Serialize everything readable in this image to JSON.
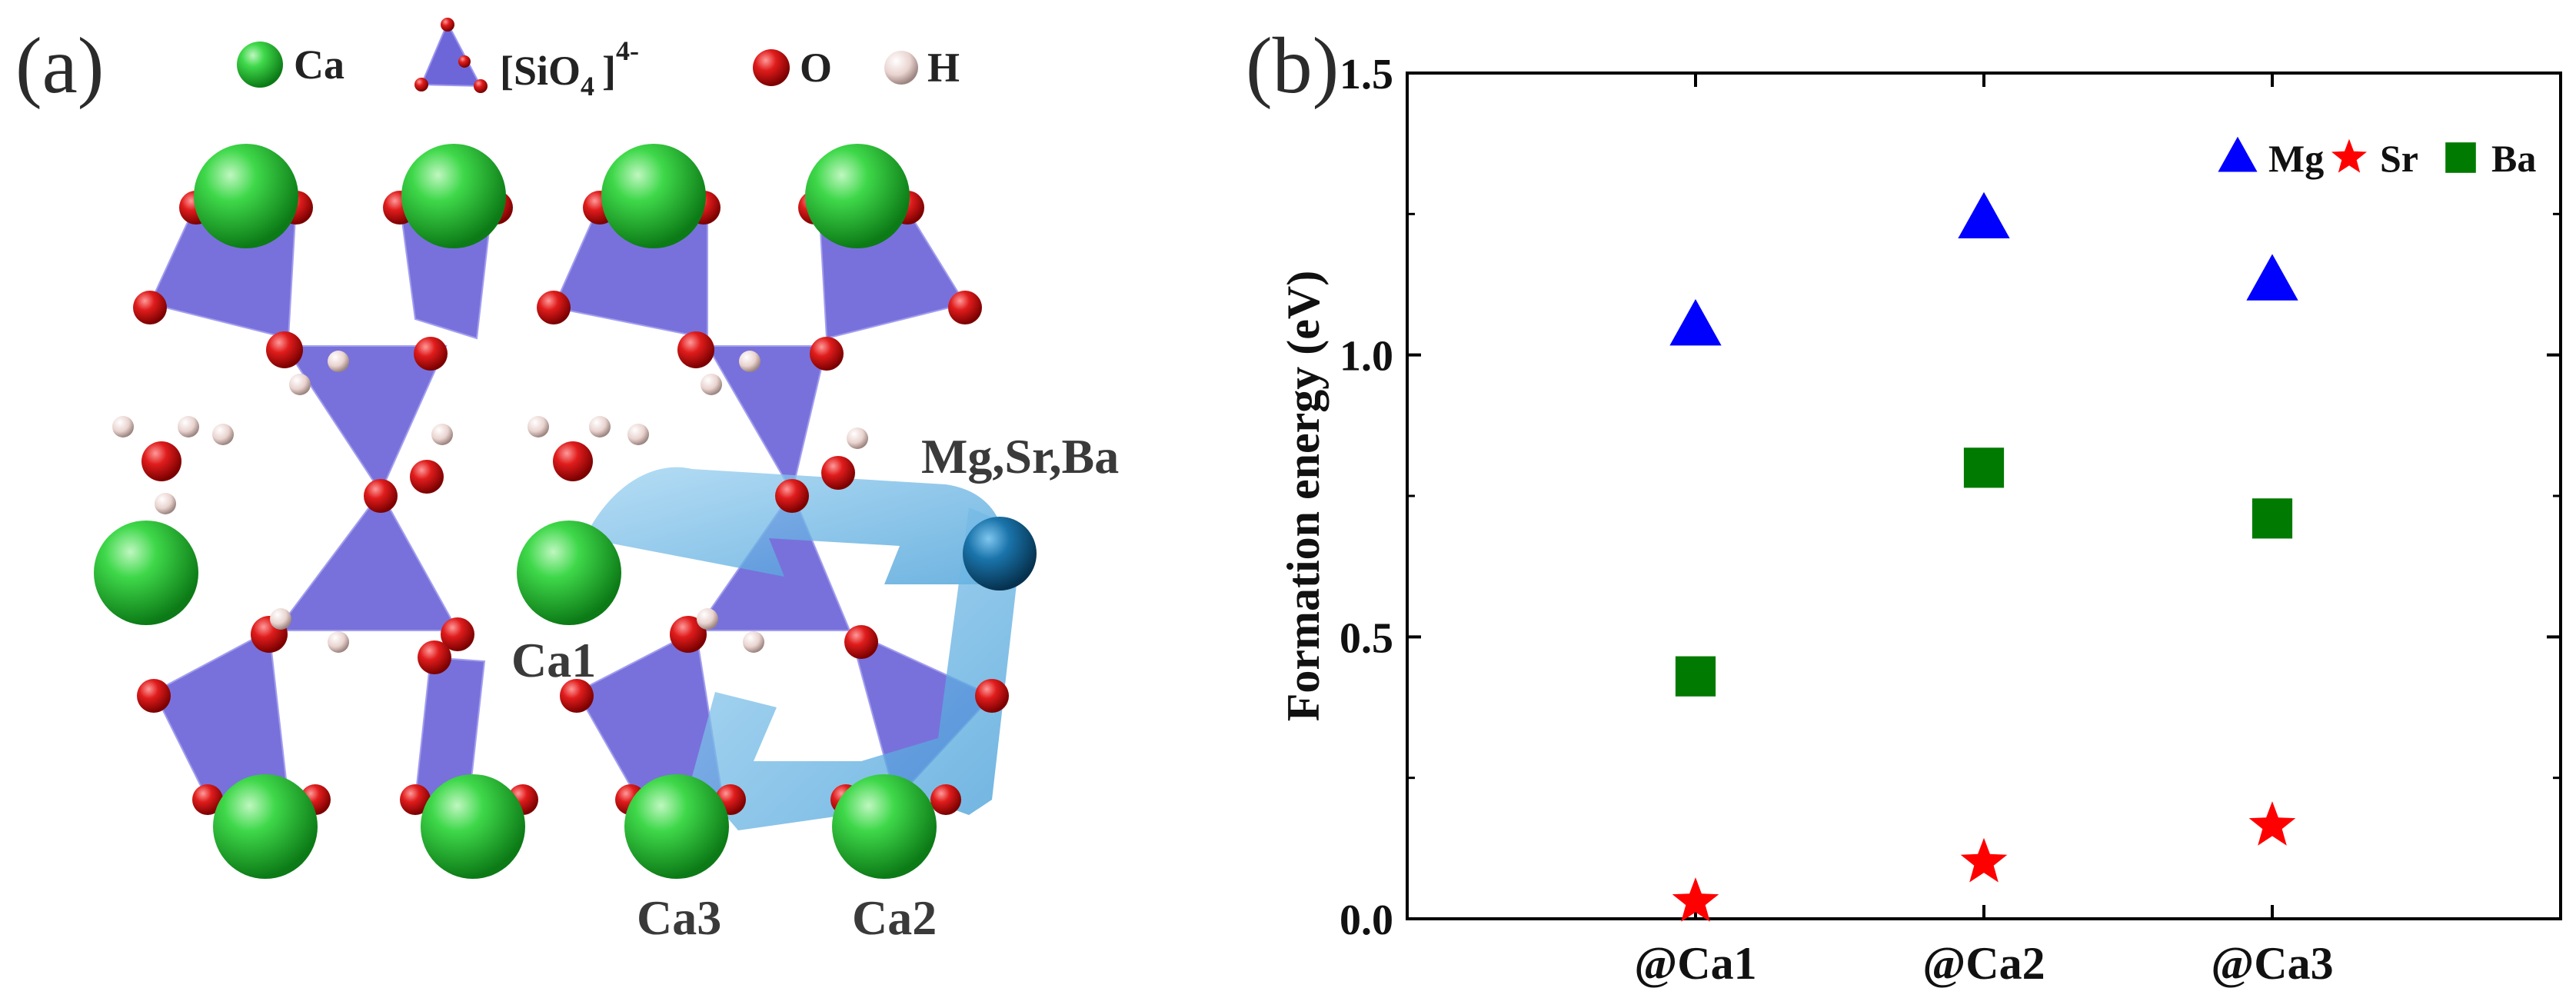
{
  "panel_a": {
    "label": "(a)",
    "legend": {
      "ca": "Ca",
      "sio4_main": "[SiO",
      "sio4_sub": "4",
      "sio4_close": "]",
      "sio4_sup": "4-",
      "o": "O",
      "h": "H"
    },
    "site_labels": {
      "ca1": "Ca1",
      "ca2": "Ca2",
      "ca3": "Ca3",
      "dopant": "Mg,Sr,Ba"
    },
    "colors": {
      "ca": "#2fc83a",
      "tetrahedron": "#6a63d6",
      "oxygen": "#d81a1a",
      "hydrogen": "#e8d3cf",
      "dopant": "#16699c",
      "arrow": "#79bfe8"
    }
  },
  "panel_b": {
    "label": "(b)",
    "chart_data": {
      "type": "scatter",
      "categories": [
        "@Ca1",
        "@Ca2",
        "@Ca3"
      ],
      "ylabel": "Formation energy (eV)",
      "xlabel": "",
      "ylim": [
        0.0,
        1.5
      ],
      "yticks": [
        "0.0",
        "0.5",
        "1.0",
        "1.5"
      ],
      "legend_position": "top-right",
      "grid": false,
      "series": [
        {
          "name": "Mg",
          "marker": "triangle",
          "color": "#0000ff",
          "values": [
            1.05,
            1.24,
            1.13
          ]
        },
        {
          "name": "Sr",
          "marker": "star",
          "color": "#ff0000",
          "values": [
            0.03,
            0.1,
            0.165
          ]
        },
        {
          "name": "Ba",
          "marker": "square",
          "color": "#007a00",
          "values": [
            0.43,
            0.8,
            0.71
          ]
        }
      ]
    }
  }
}
